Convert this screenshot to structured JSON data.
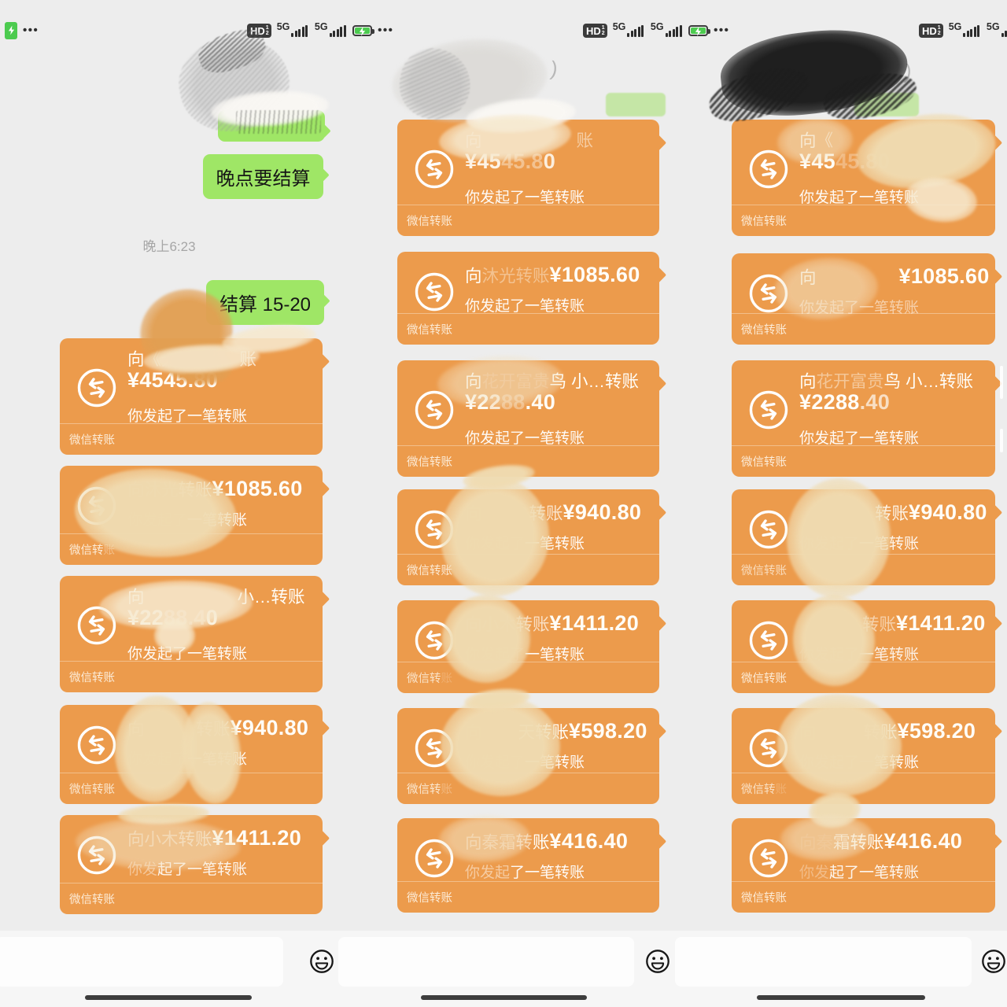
{
  "status": {
    "hd": "HD",
    "hd_sup": "1",
    "hd_sub": "2",
    "net_a": "5G",
    "net_b": "5G",
    "dots": "•••"
  },
  "chat": {
    "timestamp": "晚上6:23",
    "bubbles": [
      {
        "text": ""
      },
      {
        "text": "晚点要结算"
      },
      {
        "text": "结算 15-20"
      }
    ]
  },
  "artifacts": {
    "paren": ")"
  },
  "panels": [
    {
      "cards": [
        {
          "type": "stacked",
          "line1": [
            {
              "t": "向《无",
              "o": 1
            },
            {
              "t": "账",
              "o": 0.75,
              "ml": 78
            }
          ],
          "amount": [
            {
              "t": "¥4545.80",
              "o": 1
            }
          ],
          "sub": [
            {
              "t": "你发起了一笔转账",
              "o": 1
            }
          ],
          "footer": [
            {
              "t": "微信转账",
              "o": 1
            }
          ]
        },
        {
          "type": "inline",
          "line1": [
            {
              "t": "向沐光",
              "o": 0.3
            },
            {
              "t": "转账",
              "o": 0.85
            },
            {
              "t": "¥1085.60",
              "o": 1,
              "b": true
            }
          ],
          "sub": [
            {
              "t": "你发起了",
              "o": 0.12
            },
            {
              "t": "一笔转账",
              "o": 1
            }
          ],
          "footer": [
            {
              "t": "微信转",
              "o": 1
            },
            {
              "t": "账",
              "o": 0.45
            }
          ]
        },
        {
          "type": "stacked",
          "line1": [
            {
              "t": "向",
              "o": 1
            },
            {
              "t": "小…转账",
              "o": 1,
              "ml": 118
            }
          ],
          "amount": [
            {
              "t": "¥22",
              "o": 1
            },
            {
              "t": "88.4",
              "o": 0.45
            },
            {
              "t": "0",
              "o": 1
            }
          ],
          "sub": [
            {
              "t": "你发起了一笔转账",
              "o": 1
            }
          ],
          "footer": [
            {
              "t": "微信转账",
              "o": 1
            }
          ]
        },
        {
          "type": "inline",
          "line1": [
            {
              "t": "向",
              "o": 0.5
            },
            {
              "t": "转账",
              "o": 0.85,
              "ml": 66
            },
            {
              "t": "¥940.80",
              "o": 1,
              "b": true
            }
          ],
          "sub": [
            {
              "t": "你发起了",
              "o": 0.12
            },
            {
              "t": "一笔转账",
              "o": 1
            }
          ],
          "footer": [
            {
              "t": "微信转账",
              "o": 0.95
            }
          ]
        },
        {
          "type": "inline",
          "line1": [
            {
              "t": "向小木",
              "o": 0.5
            },
            {
              "t": "转账",
              "o": 0.6
            },
            {
              "t": "¥1411.20",
              "o": 1,
              "b": true
            }
          ],
          "sub": [
            {
              "t": "你发",
              "o": 0.45
            },
            {
              "t": "起了一笔转账",
              "o": 0.95
            }
          ],
          "footer": [
            {
              "t": "微信转账",
              "o": 1
            }
          ]
        }
      ]
    },
    {
      "cards": [
        {
          "type": "stacked",
          "line1": [
            {
              "t": "向",
              "o": 0.6
            },
            {
              "t": "账",
              "o": 0.5,
              "ml": 120
            }
          ],
          "amount": [
            {
              "t": "¥45",
              "o": 0.9
            },
            {
              "t": "45.8",
              "o": 0.4
            },
            {
              "t": "0",
              "o": 0.85
            }
          ],
          "sub": [
            {
              "t": "你发起了一笔转账",
              "o": 1
            }
          ],
          "footer": [
            {
              "t": "微信转账",
              "o": 1
            }
          ]
        },
        {
          "type": "inline",
          "line1": [
            {
              "t": "向",
              "o": 1
            },
            {
              "t": "沐光转账",
              "o": 0.4
            },
            {
              "t": "¥1085.60",
              "o": 1,
              "b": true
            }
          ],
          "sub": [
            {
              "t": "你发起了一笔转账",
              "o": 1
            }
          ],
          "footer": [
            {
              "t": "微信转账",
              "o": 1
            }
          ]
        },
        {
          "type": "stacked",
          "line1": [
            {
              "t": "向",
              "o": 1
            },
            {
              "t": "花开富贵",
              "o": 0.2
            },
            {
              "t": "鸟 小…转账",
              "o": 1
            }
          ],
          "amount": [
            {
              "t": "¥2",
              "o": 1
            },
            {
              "t": "2",
              "o": 0.8
            },
            {
              "t": "88",
              "o": 0.35
            },
            {
              "t": ".40",
              "o": 1
            }
          ],
          "sub": [
            {
              "t": "你发起了一笔转账",
              "o": 1
            }
          ],
          "footer": [
            {
              "t": "微信转账",
              "o": 1
            }
          ]
        },
        {
          "type": "inline",
          "line1": [
            {
              "t": "向",
              "o": 0.2
            },
            {
              "t": "转账",
              "o": 0.75,
              "ml": 60
            },
            {
              "t": "¥940.80",
              "o": 1,
              "b": true
            }
          ],
          "sub": [
            {
              "t": "你发起了",
              "o": 0.15
            },
            {
              "t": "一笔转账",
              "o": 1
            }
          ],
          "footer": [
            {
              "t": "微信转账",
              "o": 1
            }
          ]
        },
        {
          "type": "inline",
          "line1": [
            {
              "t": "向小木",
              "o": 0.35
            },
            {
              "t": "转账",
              "o": 0.7
            },
            {
              "t": "¥1411.20",
              "o": 1,
              "b": true
            }
          ],
          "sub": [
            {
              "t": "你发起了",
              "o": 0.2
            },
            {
              "t": "一笔转账",
              "o": 1
            }
          ],
          "footer": [
            {
              "t": "微信转",
              "o": 0.9
            },
            {
              "t": "账",
              "o": 0.25
            }
          ]
        },
        {
          "type": "inline",
          "line1": [
            {
              "t": "向",
              "o": 0.12
            },
            {
              "t": "天",
              "o": 0.9,
              "ml": 46
            },
            {
              "t": "转账",
              "o": 1
            },
            {
              "t": "¥598.20",
              "o": 1,
              "b": true
            }
          ],
          "sub": [
            {
              "t": "你发起了",
              "o": 0.12
            },
            {
              "t": "一笔转账",
              "o": 1
            }
          ],
          "footer": [
            {
              "t": "微信转",
              "o": 0.95
            },
            {
              "t": "账",
              "o": 0.35
            }
          ]
        },
        {
          "type": "inline",
          "line1": [
            {
              "t": "向秦霜",
              "o": 0.45
            },
            {
              "t": "转",
              "o": 0.6
            },
            {
              "t": "账",
              "o": 1
            },
            {
              "t": "¥416.40",
              "o": 1,
              "b": true
            }
          ],
          "sub": [
            {
              "t": "你发起",
              "o": 0.5
            },
            {
              "t": "了一笔转账",
              "o": 1
            }
          ],
          "footer": [
            {
              "t": "微信转账",
              "o": 1
            }
          ]
        }
      ]
    },
    {
      "cards": [
        {
          "type": "stacked",
          "line1": [
            {
              "t": "向",
              "o": 0.85
            },
            {
              "t": "《",
              "o": 0.6
            }
          ],
          "amount": [
            {
              "t": "¥45",
              "o": 1
            },
            {
              "t": "45.80",
              "o": 0.3
            }
          ],
          "sub": [
            {
              "t": "你发起了一笔转账",
              "o": 1
            }
          ],
          "footer": [
            {
              "t": "微信转账",
              "o": 1
            }
          ]
        },
        {
          "type": "inline",
          "line1": [
            {
              "t": "向",
              "o": 0.9
            },
            {
              "t": "¥1085.60",
              "o": 1,
              "b": true,
              "ml": 105
            }
          ],
          "sub": [
            {
              "t": "你发起了一笔转账",
              "o": 0.55
            }
          ],
          "footer": [
            {
              "t": "微信转账",
              "o": 1
            }
          ]
        },
        {
          "type": "stacked",
          "line1": [
            {
              "t": "向",
              "o": 1
            },
            {
              "t": "花开富贵",
              "o": 0.45
            },
            {
              "t": "鸟 小…转账",
              "o": 1
            }
          ],
          "amount": [
            {
              "t": "¥2288",
              "o": 1
            },
            {
              "t": ".40",
              "o": 0.7
            }
          ],
          "sub": [
            {
              "t": "你发起了一笔转账",
              "o": 1
            }
          ],
          "footer": [
            {
              "t": "微信转账",
              "o": 1
            }
          ]
        },
        {
          "type": "inline",
          "line1": [
            {
              "t": "转账",
              "o": 0.9,
              "ml": 96
            },
            {
              "t": "¥940.80",
              "o": 1,
              "b": true
            }
          ],
          "sub": [
            {
              "t": "你发起了",
              "o": 0.3
            },
            {
              "t": "一笔转账",
              "o": 0.95
            }
          ],
          "footer": [
            {
              "t": "微信转账",
              "o": 0.8
            }
          ]
        },
        {
          "type": "inline",
          "line1": [
            {
              "t": "转账",
              "o": 0.55,
              "ml": 80
            },
            {
              "t": "¥1411.20",
              "o": 1,
              "b": true
            }
          ],
          "sub": [
            {
              "t": "你发起了",
              "o": 0.25
            },
            {
              "t": "一笔转账",
              "o": 0.9
            }
          ],
          "footer": [
            {
              "t": "微信转账",
              "o": 1
            }
          ]
        },
        {
          "type": "inline",
          "line1": [
            {
              "t": "向",
              "o": 0.15
            },
            {
              "t": "转",
              "o": 0.5,
              "ml": 60
            },
            {
              "t": "账",
              "o": 1
            },
            {
              "t": "¥598.20",
              "o": 1,
              "b": true
            }
          ],
          "sub": [
            {
              "t": "你发起了一",
              "o": 0.25
            },
            {
              "t": "笔转账",
              "o": 1
            }
          ],
          "footer": [
            {
              "t": "微信转",
              "o": 0.85
            },
            {
              "t": "账",
              "o": 0.25
            }
          ]
        },
        {
          "type": "inline",
          "line1": [
            {
              "t": "向秦",
              "o": 0.12
            },
            {
              "t": "霜",
              "o": 0.8
            },
            {
              "t": "转账",
              "o": 1
            },
            {
              "t": "¥416.40",
              "o": 1,
              "b": true
            }
          ],
          "sub": [
            {
              "t": "你发",
              "o": 0.35
            },
            {
              "t": "起了一笔转账",
              "o": 0.95
            }
          ],
          "footer": [
            {
              "t": "微信转账",
              "o": 1
            }
          ]
        }
      ]
    }
  ]
}
